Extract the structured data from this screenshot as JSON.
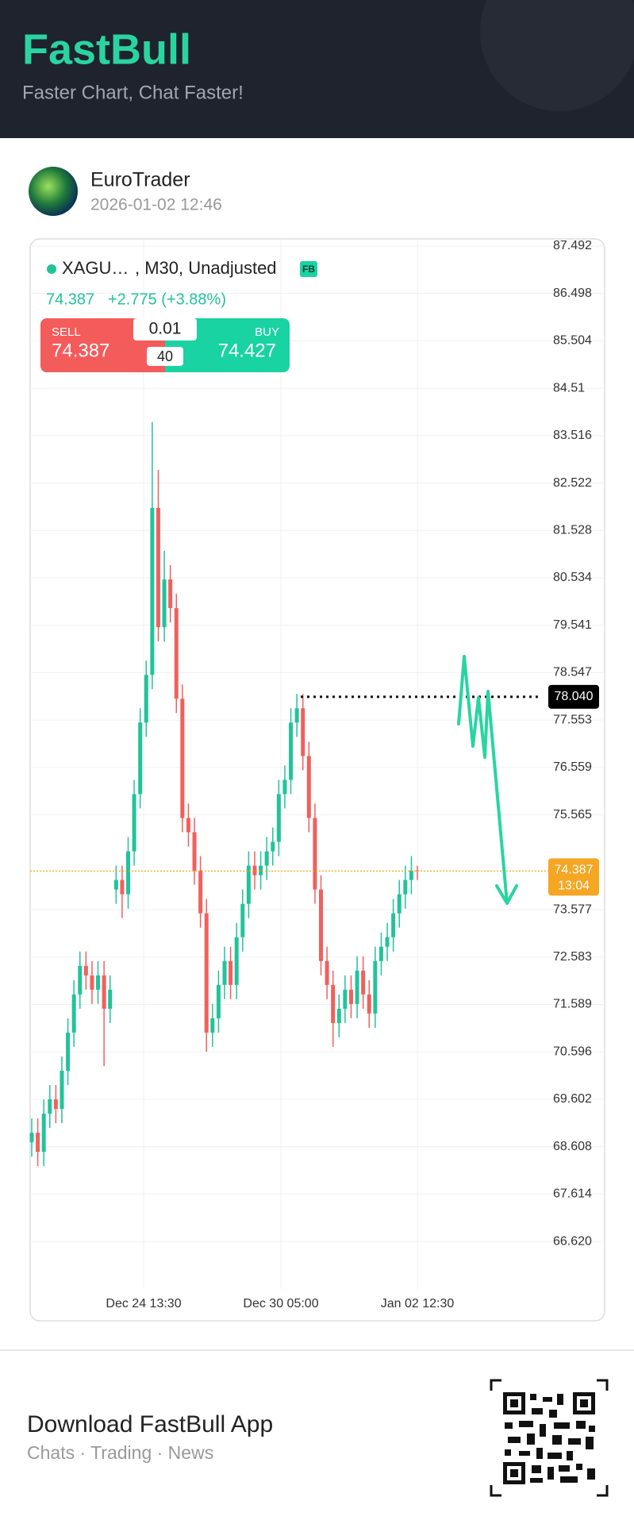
{
  "header": {
    "title": "FastBull",
    "subtitle": "Faster Chart, Chat Faster!"
  },
  "post": {
    "author": "EuroTrader",
    "time": "2026-01-02 12:46"
  },
  "chart_data": {
    "type": "candlestick",
    "symbol": "XAGU…",
    "legend": ", M30, Unadjusted",
    "badge": "FB",
    "last": 74.387,
    "change": "+2.775 (+3.88%)",
    "trade": {
      "sell_label": "SELL",
      "sell": 74.387,
      "buy_label": "BUY",
      "buy": 74.427,
      "lot": 0.01,
      "spread": 40
    },
    "up_color": "#22c39a",
    "down_color": "#f0605d",
    "open": [
      68.7,
      68.9,
      68.5,
      69.3,
      69.6,
      69.4,
      70.2,
      71.0,
      71.8,
      72.4,
      72.2,
      71.9,
      72.2,
      71.5,
      74.0,
      74.2,
      73.9,
      74.8,
      76.0,
      77.5,
      78.5,
      82.0,
      79.5,
      80.5,
      79.9,
      78.0,
      75.5,
      75.2,
      74.4,
      73.5,
      71.0,
      71.3,
      72.0,
      72.5,
      72.0,
      73.0,
      73.7,
      74.5,
      74.3,
      74.5,
      74.8,
      75.0,
      76.0,
      76.3,
      77.5,
      77.8,
      76.8,
      75.5,
      74.0,
      72.5,
      72.0,
      71.2,
      71.5,
      71.9,
      71.6,
      72.3,
      71.8,
      71.4,
      72.5,
      72.8,
      73.0,
      73.5,
      73.9,
      74.2,
      74.4
    ],
    "high": [
      69.2,
      69.2,
      69.6,
      69.9,
      69.9,
      70.5,
      71.3,
      72.1,
      72.7,
      72.7,
      72.5,
      72.5,
      72.5,
      72.2,
      74.5,
      74.5,
      75.1,
      76.3,
      77.8,
      78.8,
      83.8,
      82.8,
      81.1,
      80.8,
      80.2,
      78.3,
      75.8,
      75.5,
      74.7,
      73.8,
      71.6,
      72.3,
      72.8,
      72.8,
      73.3,
      74.0,
      74.8,
      74.8,
      74.8,
      75.1,
      75.3,
      76.3,
      76.6,
      77.8,
      78.1,
      78.1,
      77.1,
      75.8,
      74.3,
      72.8,
      72.3,
      71.8,
      72.2,
      72.2,
      72.6,
      72.6,
      72.1,
      72.8,
      73.1,
      73.3,
      73.8,
      74.2,
      74.5,
      74.7,
      74.5
    ],
    "low": [
      68.4,
      68.2,
      68.2,
      69.0,
      69.1,
      69.1,
      69.9,
      70.7,
      71.5,
      71.9,
      71.6,
      71.6,
      70.3,
      71.2,
      73.7,
      73.4,
      73.6,
      74.5,
      75.7,
      77.2,
      78.2,
      79.2,
      79.2,
      79.6,
      77.7,
      75.2,
      74.9,
      74.1,
      73.2,
      70.6,
      70.7,
      71.0,
      71.7,
      71.7,
      71.7,
      72.7,
      73.4,
      74.0,
      74.0,
      74.2,
      74.5,
      74.7,
      75.7,
      76.0,
      77.2,
      76.5,
      75.2,
      73.7,
      72.2,
      71.7,
      70.7,
      70.9,
      71.2,
      71.3,
      71.3,
      71.5,
      71.1,
      71.1,
      72.2,
      72.5,
      72.7,
      73.2,
      73.6,
      73.9,
      74.2
    ],
    "close": [
      68.9,
      68.5,
      69.3,
      69.6,
      69.4,
      70.2,
      71.0,
      71.8,
      72.4,
      72.2,
      71.9,
      72.2,
      71.5,
      71.9,
      74.2,
      73.9,
      74.8,
      76.0,
      77.5,
      78.5,
      82.0,
      79.5,
      80.5,
      79.9,
      78.0,
      75.5,
      75.2,
      74.4,
      73.5,
      71.0,
      71.3,
      72.0,
      72.5,
      72.0,
      73.0,
      73.7,
      74.5,
      74.3,
      74.5,
      74.8,
      75.0,
      76.0,
      76.3,
      77.5,
      77.8,
      76.8,
      75.5,
      74.0,
      72.5,
      72.0,
      71.2,
      71.5,
      71.9,
      71.6,
      72.3,
      71.8,
      71.4,
      72.5,
      72.8,
      73.0,
      73.5,
      73.9,
      74.2,
      74.4,
      74.387
    ],
    "x_labels": [
      "Dec 24 13:30",
      "Dec 30 05:00",
      "Jan 02 12:30"
    ],
    "ylim": [
      65.69,
      87.64
    ],
    "yticks": [
      87.492,
      86.498,
      85.504,
      84.51,
      83.516,
      82.522,
      81.528,
      80.534,
      79.541,
      78.547,
      77.553,
      76.559,
      75.565,
      73.577,
      72.583,
      71.589,
      70.596,
      69.602,
      68.608,
      67.614,
      {
        "value": 66.62,
        "label": "66.620"
      }
    ],
    "grid": true,
    "price_line": {
      "value": 78.04,
      "label": "78.040"
    },
    "current": {
      "value": 74.387,
      "label": "74.387",
      "timer": "13:04"
    }
  },
  "footer": {
    "title": "Download FastBull App",
    "subtitle": "Chats · Trading · News"
  }
}
